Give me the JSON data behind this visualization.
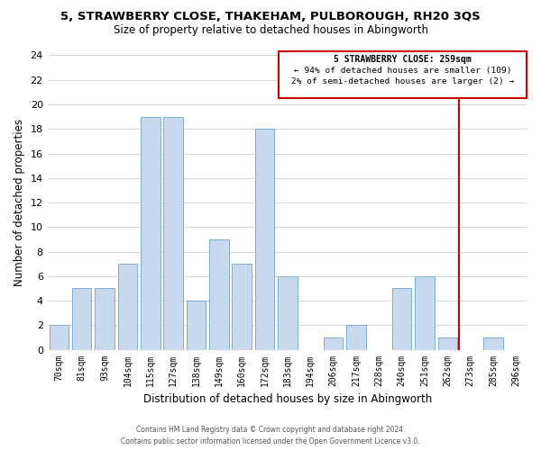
{
  "title": "5, STRAWBERRY CLOSE, THAKEHAM, PULBOROUGH, RH20 3QS",
  "subtitle": "Size of property relative to detached houses in Abingworth",
  "xlabel": "Distribution of detached houses by size in Abingworth",
  "ylabel": "Number of detached properties",
  "bin_labels": [
    "70sqm",
    "81sqm",
    "93sqm",
    "104sqm",
    "115sqm",
    "127sqm",
    "138sqm",
    "149sqm",
    "160sqm",
    "172sqm",
    "183sqm",
    "194sqm",
    "206sqm",
    "217sqm",
    "228sqm",
    "240sqm",
    "251sqm",
    "262sqm",
    "273sqm",
    "285sqm",
    "296sqm"
  ],
  "bar_values": [
    2,
    5,
    5,
    7,
    19,
    19,
    4,
    9,
    7,
    18,
    6,
    0,
    1,
    2,
    0,
    5,
    6,
    1,
    0,
    1,
    0
  ],
  "bar_color": "#c8d9ee",
  "bar_edgecolor": "#7aafd4",
  "grid_color": "#d0d0d0",
  "vline_color": "#cc0000",
  "vline_index": 17,
  "annotation_title": "5 STRAWBERRY CLOSE: 259sqm",
  "annotation_line1": "← 94% of detached houses are smaller (109)",
  "annotation_line2": "2% of semi-detached houses are larger (2) →",
  "annotation_box_color": "#cc0000",
  "ylim": [
    0,
    24
  ],
  "yticks": [
    0,
    2,
    4,
    6,
    8,
    10,
    12,
    14,
    16,
    18,
    20,
    22,
    24
  ],
  "footer_line1": "Contains HM Land Registry data © Crown copyright and database right 2024.",
  "footer_line2": "Contains public sector information licensed under the Open Government Licence v3.0.",
  "bg_color": "#ffffff"
}
